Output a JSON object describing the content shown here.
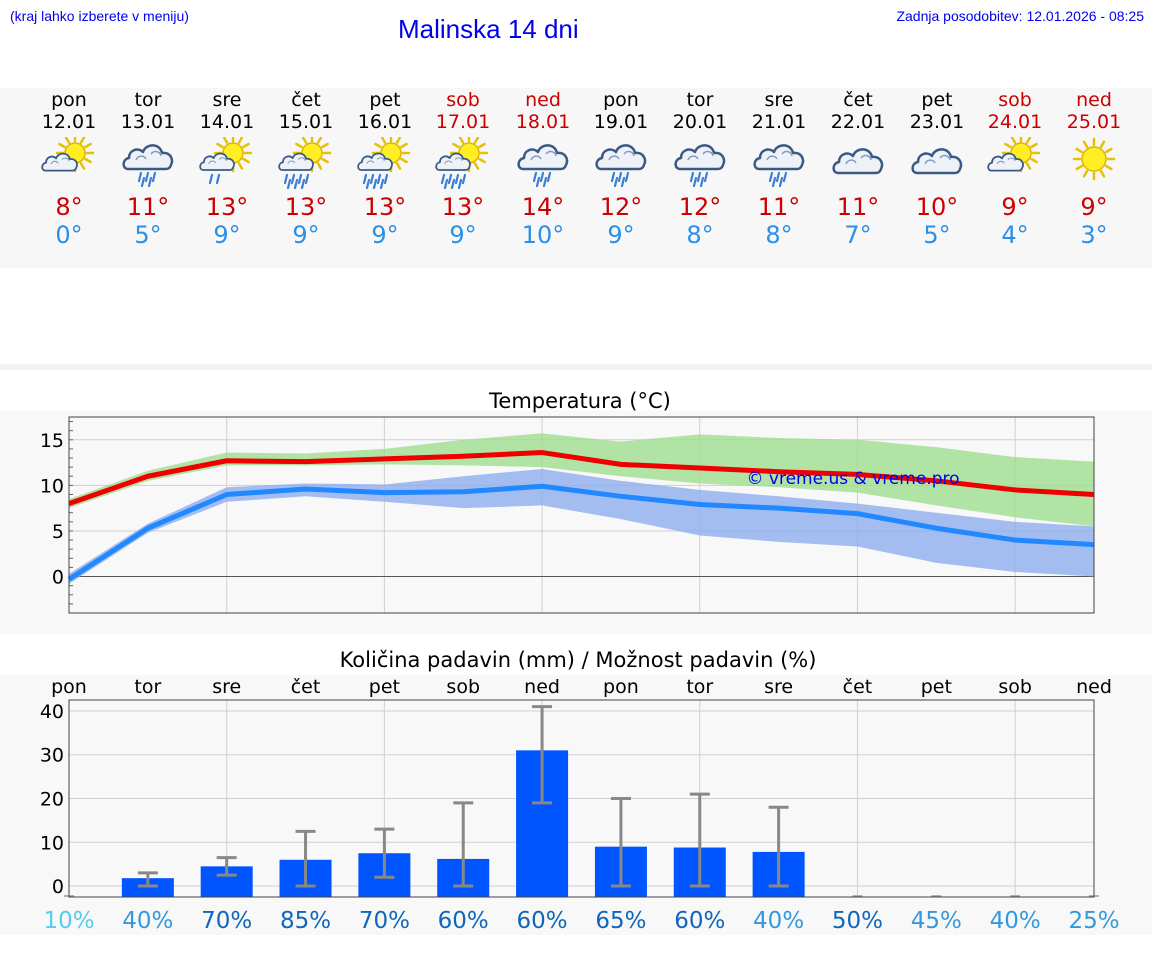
{
  "header": {
    "hint": "(kraj lahko izberete v meniju)",
    "title": "Malinska 14 dni",
    "updated": "Zadnja posodobitev: 12.01.2026 - 08:25"
  },
  "days": [
    {
      "name": "pon",
      "date": "12.01",
      "weekend": false,
      "icon": "partly-cloudy-icon",
      "tmax": "8°",
      "tmin": "0°"
    },
    {
      "name": "tor",
      "date": "13.01",
      "weekend": false,
      "icon": "cloud-rain-icon",
      "tmax": "11°",
      "tmin": "5°"
    },
    {
      "name": "sre",
      "date": "14.01",
      "weekend": false,
      "icon": "sun-cloud-rain-icon",
      "tmax": "13°",
      "tmin": "9°"
    },
    {
      "name": "čet",
      "date": "15.01",
      "weekend": false,
      "icon": "sun-cloud-heavy-rain-icon",
      "tmax": "13°",
      "tmin": "9°"
    },
    {
      "name": "pet",
      "date": "16.01",
      "weekend": false,
      "icon": "sun-cloud-heavy-rain-icon",
      "tmax": "13°",
      "tmin": "9°"
    },
    {
      "name": "sob",
      "date": "17.01",
      "weekend": true,
      "icon": "sun-cloud-heavy-rain-icon",
      "tmax": "13°",
      "tmin": "9°"
    },
    {
      "name": "ned",
      "date": "18.01",
      "weekend": true,
      "icon": "cloud-rain-icon",
      "tmax": "14°",
      "tmin": "10°"
    },
    {
      "name": "pon",
      "date": "19.01",
      "weekend": false,
      "icon": "cloud-rain-icon",
      "tmax": "12°",
      "tmin": "9°"
    },
    {
      "name": "tor",
      "date": "20.01",
      "weekend": false,
      "icon": "cloud-rain-icon",
      "tmax": "12°",
      "tmin": "8°"
    },
    {
      "name": "sre",
      "date": "21.01",
      "weekend": false,
      "icon": "cloud-rain-icon",
      "tmax": "11°",
      "tmin": "8°"
    },
    {
      "name": "čet",
      "date": "22.01",
      "weekend": false,
      "icon": "cloudy-icon",
      "tmax": "11°",
      "tmin": "7°"
    },
    {
      "name": "pet",
      "date": "23.01",
      "weekend": false,
      "icon": "cloudy-icon",
      "tmax": "10°",
      "tmin": "5°"
    },
    {
      "name": "sob",
      "date": "24.01",
      "weekend": true,
      "icon": "partly-cloudy-icon",
      "tmax": "9°",
      "tmin": "4°"
    },
    {
      "name": "ned",
      "date": "25.01",
      "weekend": true,
      "icon": "sun-icon",
      "tmax": "9°",
      "tmin": "3°"
    }
  ],
  "colors": {
    "max_line": "#ee0000",
    "min_line": "#2288ff",
    "max_band": "#99dd88",
    "min_band": "#88aaee",
    "bar": "#0055ff",
    "error": "#888888",
    "link": "#0000ee"
  },
  "chart_data": [
    {
      "type": "line",
      "title": "Temperatura (°C)",
      "watermark": "© vreme.us & vreme.pro",
      "x": [
        0,
        1,
        2,
        3,
        4,
        5,
        6,
        7,
        8,
        9,
        10,
        11,
        12,
        13
      ],
      "ylim": [
        -4,
        17.5
      ],
      "yticks": [
        0,
        5,
        10,
        15
      ],
      "series": [
        {
          "name": "max",
          "values": [
            8,
            11,
            12.7,
            12.6,
            12.9,
            13.2,
            13.6,
            12.3,
            11.9,
            11.5,
            11.2,
            10.5,
            9.5,
            9.0
          ],
          "band_low": [
            7.5,
            10.5,
            12.2,
            12.2,
            12.3,
            12.2,
            12.0,
            11.0,
            10.2,
            9.8,
            9.2,
            7.8,
            6.5,
            5.5
          ],
          "band_high": [
            8.5,
            11.6,
            13.6,
            13.5,
            14.0,
            15.0,
            15.7,
            14.8,
            15.6,
            15.2,
            15.0,
            14.2,
            13.1,
            12.6
          ]
        },
        {
          "name": "min",
          "values": [
            -0.3,
            5.3,
            9.0,
            9.6,
            9.2,
            9.3,
            9.9,
            8.8,
            7.9,
            7.5,
            6.9,
            5.3,
            4.0,
            3.5
          ],
          "band_low": [
            -0.8,
            4.8,
            8.2,
            8.8,
            8.2,
            7.5,
            7.8,
            6.3,
            4.5,
            3.8,
            3.3,
            1.5,
            0.5,
            0.0
          ],
          "band_high": [
            0.3,
            5.8,
            9.8,
            10.2,
            10.1,
            11.0,
            11.8,
            10.5,
            9.5,
            8.8,
            8.0,
            7.0,
            6.0,
            5.5
          ]
        }
      ]
    },
    {
      "type": "bar",
      "title": "Količina padavin (mm) / Možnost padavin (%)",
      "categories": [
        "pon",
        "tor",
        "sre",
        "čet",
        "pet",
        "sob",
        "ned",
        "pon",
        "tor",
        "sre",
        "čet",
        "pet",
        "sob",
        "ned"
      ],
      "values": [
        0,
        1.8,
        4.5,
        6,
        7.5,
        6.2,
        31,
        9,
        8.8,
        7.8,
        0,
        0,
        0,
        0
      ],
      "err_low": [
        0,
        0,
        2.5,
        0,
        2,
        0,
        19,
        0,
        0,
        0,
        0,
        0,
        0,
        0
      ],
      "err_high": [
        0,
        3,
        6.5,
        12.5,
        13,
        19,
        41,
        20,
        21,
        18,
        0,
        0,
        0,
        0
      ],
      "ylim": [
        -2.5,
        42.5
      ],
      "yticks": [
        0,
        10,
        20,
        30,
        40
      ],
      "probabilities": [
        "10%",
        "40%",
        "70%",
        "85%",
        "70%",
        "60%",
        "60%",
        "65%",
        "60%",
        "40%",
        "50%",
        "45%",
        "40%",
        "25%"
      ],
      "prob_colors": [
        "#55ccee",
        "#3399dd",
        "#1166bb",
        "#1166bb",
        "#1166bb",
        "#1166bb",
        "#1166bb",
        "#1166bb",
        "#1166bb",
        "#3399dd",
        "#1166bb",
        "#3399dd",
        "#3399dd",
        "#3399dd"
      ]
    }
  ]
}
